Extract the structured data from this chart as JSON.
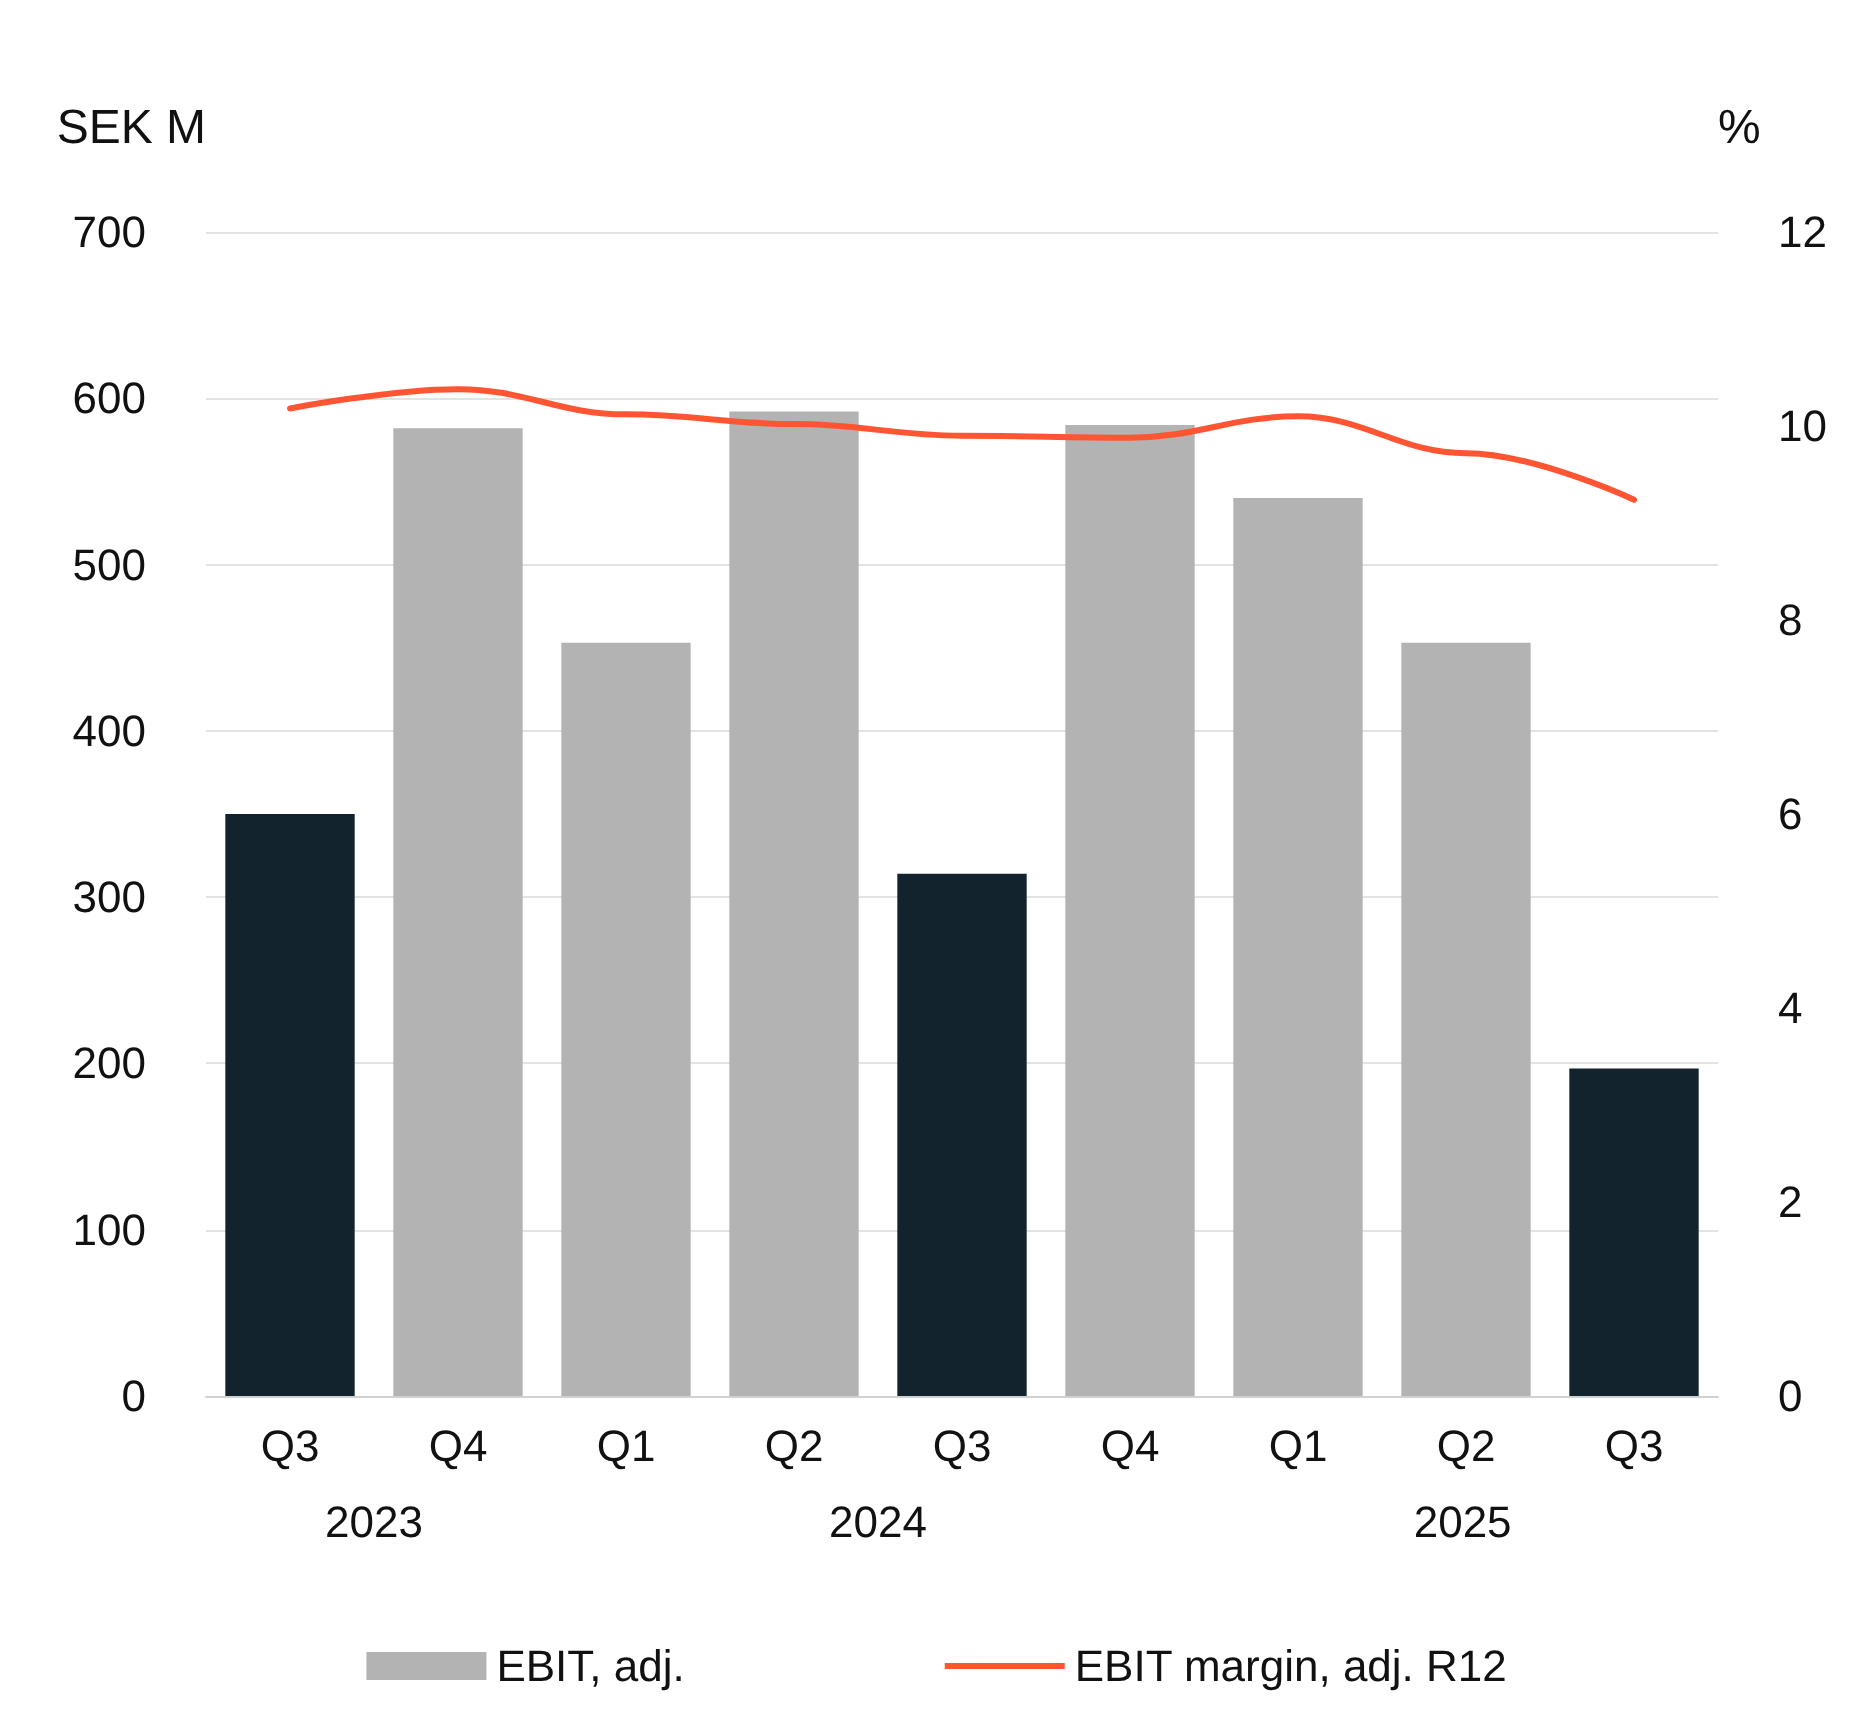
{
  "chart_data": {
    "type": "bar",
    "ylabel": "SEK M",
    "y2label": "%",
    "categories": [
      "Q3",
      "Q4",
      "Q1",
      "Q2",
      "Q3",
      "Q4",
      "Q1",
      "Q2",
      "Q3"
    ],
    "series": [
      {
        "name": "EBIT, adj.",
        "color": "#b3b3b3",
        "colors": [
          "#12232e",
          "#b3b3b3",
          "#b3b3b3",
          "#b3b3b3",
          "#12232e",
          "#b3b3b3",
          "#b3b3b3",
          "#b3b3b3",
          "#12232e"
        ],
        "values": [
          350,
          582,
          453,
          592,
          314,
          584,
          540,
          453,
          197
        ]
      },
      {
        "name": "EBIT margin, adj. R12",
        "type": "line",
        "axis": "y2",
        "color": "#ff5533",
        "values": [
          10.18,
          10.38,
          10.12,
          10.02,
          9.9,
          9.88,
          10.1,
          9.72,
          9.24
        ]
      }
    ],
    "annotations": [
      "2023",
      "2024",
      "2025"
    ],
    "ylim": [
      0,
      700
    ],
    "yticks": [
      0,
      100,
      200,
      300,
      400,
      500,
      600,
      700
    ],
    "y2lim": [
      0,
      12
    ],
    "y2ticks": [
      0,
      2,
      4,
      6,
      8,
      10,
      12
    ],
    "grid": "y",
    "legend": "bottom",
    "marker": "none",
    "line_style": "solid"
  }
}
